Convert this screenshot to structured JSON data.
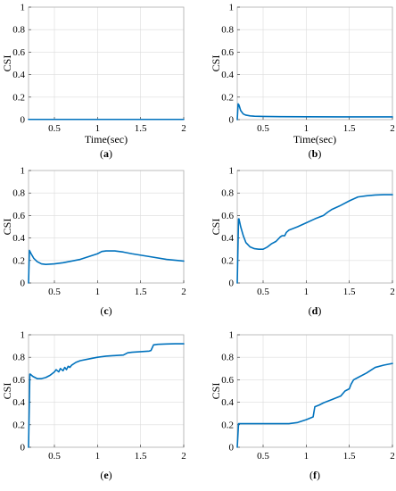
{
  "chart_data": [
    {
      "type": "line",
      "panel": "a",
      "caption_open": "(",
      "caption_letter": "a",
      "caption_close": ")",
      "xlabel": "Time(sec)",
      "ylabel": "CSI",
      "xlim": [
        0.2,
        2
      ],
      "ylim": [
        0,
        1
      ],
      "xticks": [
        "0.5",
        "1",
        "1.5",
        "2"
      ],
      "yticks": [
        "0",
        "0.2",
        "0.4",
        "0.6",
        "0.8",
        "1"
      ],
      "grid": true,
      "series": [
        {
          "color": "#0072BD",
          "x": [
            0.2,
            0.3,
            0.5,
            1.0,
            1.5,
            2.0
          ],
          "y": [
            0.002,
            0.002,
            0.002,
            0.002,
            0.002,
            0.002
          ]
        }
      ]
    },
    {
      "type": "line",
      "panel": "b",
      "caption_open": "(",
      "caption_letter": "b",
      "caption_close": ")",
      "xlabel": "Time(sec)",
      "ylabel": "CSI",
      "xlim": [
        0.2,
        2
      ],
      "ylim": [
        0,
        1
      ],
      "xticks": [
        "0.5",
        "1",
        "1.5",
        "2"
      ],
      "yticks": [
        "0",
        "0.2",
        "0.4",
        "0.6",
        "0.8",
        "1"
      ],
      "grid": true,
      "series": [
        {
          "color": "#0072BD",
          "x": [
            0.2,
            0.21,
            0.22,
            0.24,
            0.27,
            0.3,
            0.35,
            0.4,
            0.5,
            0.7,
            1.0,
            1.5,
            2.0
          ],
          "y": [
            0.0,
            0.14,
            0.13,
            0.08,
            0.05,
            0.04,
            0.033,
            0.03,
            0.028,
            0.026,
            0.025,
            0.024,
            0.024
          ]
        }
      ]
    },
    {
      "type": "line",
      "panel": "c",
      "caption_open": "(",
      "caption_letter": "c",
      "caption_close": ")",
      "xlabel": "",
      "ylabel": "CSI",
      "xlim": [
        0.2,
        2
      ],
      "ylim": [
        0,
        1
      ],
      "xticks": [
        "0.5",
        "1",
        "1.5",
        "2"
      ],
      "yticks": [
        "0",
        "0.2",
        "0.4",
        "0.6",
        "0.8",
        "1"
      ],
      "grid": true,
      "series": [
        {
          "color": "#0072BD",
          "x": [
            0.2,
            0.21,
            0.23,
            0.26,
            0.3,
            0.35,
            0.4,
            0.5,
            0.6,
            0.7,
            0.8,
            0.9,
            1.0,
            1.05,
            1.1,
            1.2,
            1.3,
            1.4,
            1.6,
            1.8,
            2.0
          ],
          "y": [
            0.0,
            0.29,
            0.26,
            0.22,
            0.19,
            0.17,
            0.165,
            0.17,
            0.18,
            0.195,
            0.21,
            0.235,
            0.26,
            0.28,
            0.285,
            0.285,
            0.275,
            0.26,
            0.235,
            0.21,
            0.195
          ]
        }
      ]
    },
    {
      "type": "line",
      "panel": "d",
      "caption_open": "(",
      "caption_letter": "d",
      "caption_close": ")",
      "xlabel": "",
      "ylabel": "CSI",
      "xlim": [
        0.2,
        2
      ],
      "ylim": [
        0,
        1
      ],
      "xticks": [
        "0.5",
        "1",
        "1.5",
        "2"
      ],
      "yticks": [
        "0",
        "0.2",
        "0.4",
        "0.6",
        "0.8",
        "1"
      ],
      "grid": true,
      "series": [
        {
          "color": "#0072BD",
          "x": [
            0.2,
            0.215,
            0.22,
            0.24,
            0.27,
            0.3,
            0.35,
            0.4,
            0.45,
            0.5,
            0.55,
            0.6,
            0.65,
            0.7,
            0.72,
            0.75,
            0.77,
            0.8,
            0.9,
            1.0,
            1.1,
            1.2,
            1.25,
            1.3,
            1.4,
            1.5,
            1.6,
            1.7,
            1.8,
            1.9,
            2.0
          ],
          "y": [
            0.0,
            0.57,
            0.57,
            0.5,
            0.42,
            0.36,
            0.32,
            0.305,
            0.3,
            0.3,
            0.32,
            0.35,
            0.37,
            0.41,
            0.42,
            0.42,
            0.45,
            0.47,
            0.5,
            0.535,
            0.57,
            0.6,
            0.63,
            0.655,
            0.69,
            0.73,
            0.765,
            0.775,
            0.782,
            0.785,
            0.785
          ]
        }
      ]
    },
    {
      "type": "line",
      "panel": "e",
      "caption_open": "(",
      "caption_letter": "e",
      "caption_close": ")",
      "xlabel": "",
      "ylabel": "CSI",
      "xlim": [
        0.2,
        2
      ],
      "ylim": [
        0,
        1
      ],
      "xticks": [
        "0.5",
        "1",
        "1.5",
        "2"
      ],
      "yticks": [
        "0",
        "0.2",
        "0.4",
        "0.6",
        "0.8",
        "1"
      ],
      "grid": true,
      "series": [
        {
          "color": "#0072BD",
          "x": [
            0.2,
            0.215,
            0.22,
            0.25,
            0.3,
            0.35,
            0.4,
            0.45,
            0.5,
            0.52,
            0.55,
            0.57,
            0.6,
            0.62,
            0.64,
            0.66,
            0.68,
            0.7,
            0.75,
            0.8,
            0.9,
            1.0,
            1.1,
            1.2,
            1.3,
            1.35,
            1.4,
            1.5,
            1.6,
            1.62,
            1.65,
            1.7,
            1.8,
            1.9,
            2.0
          ],
          "y": [
            0.0,
            0.65,
            0.65,
            0.63,
            0.61,
            0.61,
            0.62,
            0.64,
            0.67,
            0.69,
            0.67,
            0.7,
            0.68,
            0.71,
            0.69,
            0.72,
            0.71,
            0.73,
            0.755,
            0.77,
            0.785,
            0.8,
            0.81,
            0.815,
            0.82,
            0.84,
            0.845,
            0.85,
            0.855,
            0.86,
            0.91,
            0.915,
            0.918,
            0.92,
            0.92
          ]
        }
      ]
    },
    {
      "type": "line",
      "panel": "f",
      "caption_open": "(",
      "caption_letter": "f",
      "caption_close": ")",
      "xlabel": "",
      "ylabel": "CSI",
      "xlim": [
        0.2,
        2
      ],
      "ylim": [
        0,
        1
      ],
      "xticks": [
        "0.5",
        "1",
        "1.5",
        "2"
      ],
      "yticks": [
        "0",
        "0.2",
        "0.4",
        "0.6",
        "0.8",
        "1"
      ],
      "grid": true,
      "series": [
        {
          "color": "#0072BD",
          "x": [
            0.2,
            0.215,
            0.22,
            0.3,
            0.5,
            0.7,
            0.8,
            0.9,
            1.0,
            1.08,
            1.1,
            1.15,
            1.2,
            1.3,
            1.4,
            1.45,
            1.5,
            1.52,
            1.55,
            1.6,
            1.7,
            1.8,
            1.9,
            2.0
          ],
          "y": [
            0.0,
            0.21,
            0.21,
            0.21,
            0.21,
            0.21,
            0.21,
            0.22,
            0.245,
            0.27,
            0.36,
            0.375,
            0.395,
            0.425,
            0.455,
            0.5,
            0.52,
            0.56,
            0.6,
            0.62,
            0.66,
            0.71,
            0.73,
            0.745
          ]
        }
      ]
    }
  ]
}
